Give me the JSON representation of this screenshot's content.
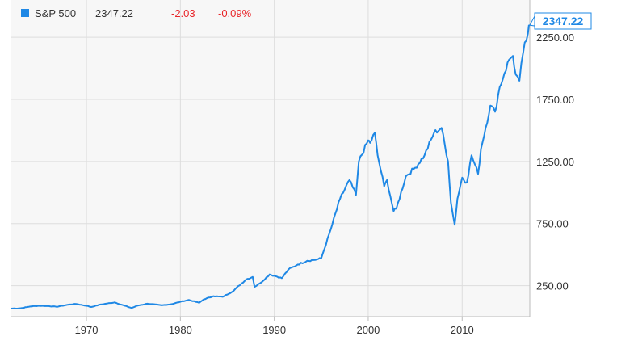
{
  "chart_data": {
    "type": "line",
    "title": "",
    "xlabel": "",
    "ylabel": "",
    "xlim": [
      1962.0,
      2017.2
    ],
    "ylim": [
      0,
      2550
    ],
    "grid": true,
    "legend_position": "top-left",
    "x_ticks": [
      1970,
      1980,
      1990,
      2000,
      2010
    ],
    "x_tick_labels": [
      "1970",
      "1980",
      "1990",
      "2000",
      "2010"
    ],
    "y_ticks": [
      250,
      750,
      1250,
      1750,
      2250
    ],
    "y_tick_labels": [
      "250.00",
      "750.00",
      "1250.00",
      "1750.00",
      "2250.00"
    ],
    "colors": {
      "series": "#1f88e5",
      "positive_change": "#e8262a",
      "grid": "#dddddd",
      "plot_bg": "#f7f7f7"
    },
    "legend": {
      "name": "S&P 500",
      "value": "2347.22",
      "change": "-2.03",
      "change_pct": "-0.09%"
    },
    "last_value_label": "2347.22",
    "series": [
      {
        "name": "S&P 500",
        "x": [
          1962.0,
          1963.0,
          1964.0,
          1965.0,
          1966.0,
          1966.8,
          1968.0,
          1968.9,
          1970.0,
          1970.5,
          1971.5,
          1973.0,
          1974.8,
          1975.5,
          1976.5,
          1978.0,
          1979.0,
          1980.0,
          1980.9,
          1982.0,
          1982.5,
          1983.5,
          1984.5,
          1985.5,
          1987.0,
          1987.7,
          1987.9,
          1988.5,
          1989.5,
          1990.0,
          1990.8,
          1991.5,
          1992.5,
          1993.5,
          1994.5,
          1995.0,
          1996.0,
          1997.0,
          1998.0,
          1998.7,
          1999.0,
          2000.0,
          2000.2,
          2000.7,
          2001.0,
          2001.7,
          2002.0,
          2002.7,
          2003.0,
          2004.0,
          2005.0,
          2006.0,
          2007.0,
          2007.8,
          2008.5,
          2008.8,
          2009.2,
          2009.5,
          2010.0,
          2010.5,
          2011.0,
          2011.7,
          2012.0,
          2013.0,
          2013.5,
          2014.0,
          2014.5,
          2015.0,
          2015.4,
          2015.7,
          2016.1,
          2016.5,
          2017.0,
          2017.2
        ],
        "values": [
          65,
          68,
          82,
          88,
          85,
          80,
          96,
          103,
          88,
          78,
          98,
          115,
          70,
          90,
          105,
          92,
          100,
          120,
          135,
          112,
          140,
          165,
          160,
          200,
          300,
          320,
          240,
          270,
          340,
          330,
          310,
          380,
          420,
          450,
          460,
          470,
          700,
          950,
          1100,
          980,
          1250,
          1420,
          1400,
          1480,
          1300,
          1050,
          1100,
          850,
          870,
          1130,
          1200,
          1300,
          1480,
          1520,
          1250,
          920,
          740,
          950,
          1120,
          1080,
          1300,
          1150,
          1350,
          1700,
          1650,
          1850,
          1960,
          2070,
          2100,
          1950,
          1900,
          2130,
          2280,
          2347.22
        ]
      }
    ]
  }
}
